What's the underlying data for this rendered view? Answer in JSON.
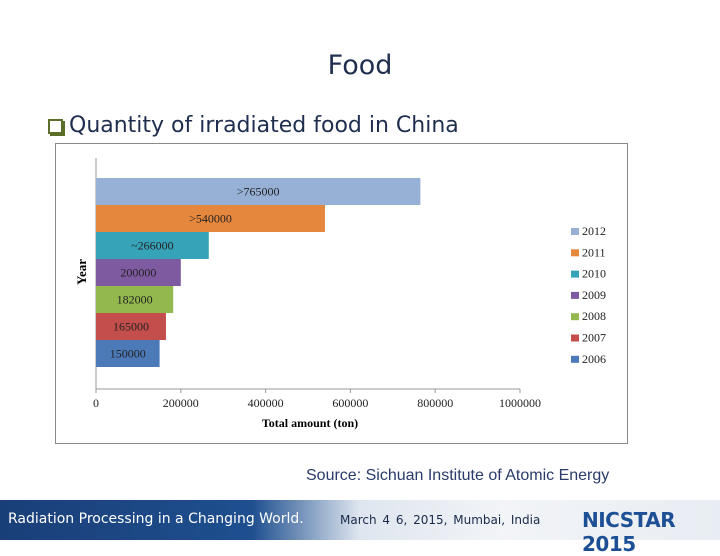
{
  "slide": {
    "title": "Food",
    "bullet": "Quantity of irradiated food in China",
    "source": "Source: Sichuan Institute of Atomic Energy"
  },
  "footer": {
    "left": "Radiation Processing in a Changing World.",
    "mid": "March 4   6, 2015, Mumbai, India",
    "logo": "NICSTAR 2015"
  },
  "chart_data": {
    "type": "bar",
    "orientation": "horizontal",
    "xlabel": "Total amount (ton)",
    "ylabel": "Year",
    "xlim": [
      0,
      1000000
    ],
    "xticks": [
      0,
      200000,
      400000,
      600000,
      800000,
      1000000
    ],
    "legend_position": "right",
    "grid": false,
    "series": [
      {
        "name": "2012",
        "value": 765000,
        "label": ">765000",
        "color": "#97b0d6"
      },
      {
        "name": "2011",
        "value": 540000,
        "label": ">540000",
        "color": "#e6873e"
      },
      {
        "name": "2010",
        "value": 266000,
        "label": "~266000",
        "color": "#37a3b8"
      },
      {
        "name": "2009",
        "value": 200000,
        "label": "200000",
        "color": "#7e5aa0"
      },
      {
        "name": "2008",
        "value": 182000,
        "label": "182000",
        "color": "#93b84e"
      },
      {
        "name": "2007",
        "value": 165000,
        "label": "165000",
        "color": "#c44e4b"
      },
      {
        "name": "2006",
        "value": 150000,
        "label": "150000",
        "color": "#4c79b8"
      }
    ]
  }
}
